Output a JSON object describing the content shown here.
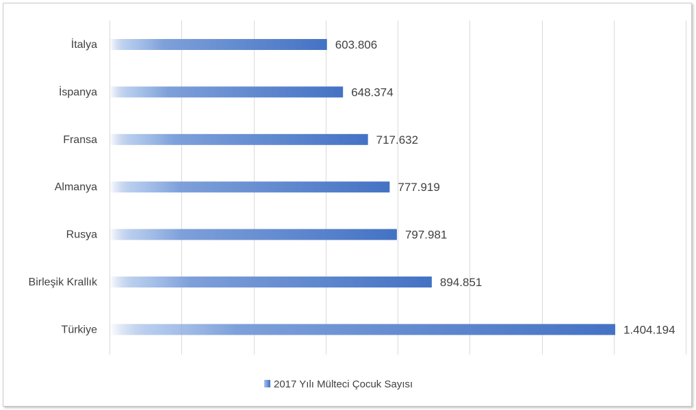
{
  "chart_data": {
    "type": "bar",
    "orientation": "horizontal",
    "categories": [
      "İtalya",
      "İspanya",
      "Fransa",
      "Almanya",
      "Rusya",
      "Birleşik Krallık",
      "Türkiye"
    ],
    "series": [
      {
        "name": "2017 Yılı Mülteci Çocuk Sayısı",
        "values": [
          603806,
          648374,
          717632,
          777919,
          797981,
          894851,
          1404194
        ],
        "data_labels": [
          "603.806",
          "648.374",
          "717.632",
          "777.919",
          "797.981",
          "894.851",
          "1.404.194"
        ]
      }
    ],
    "xlim": [
      0,
      1600000
    ],
    "x_gridline_step": 200000,
    "grid": true,
    "legend_position": "bottom",
    "bar_color": "#4472C4"
  }
}
